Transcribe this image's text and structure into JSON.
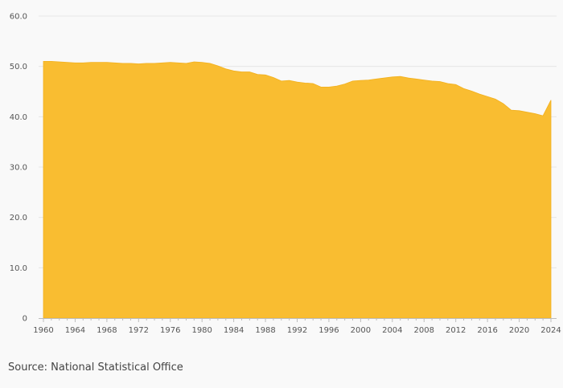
{
  "chart_data": {
    "type": "area",
    "title": "",
    "xlabel": "",
    "ylabel": "",
    "ylim": [
      0,
      60
    ],
    "xlim": [
      1960,
      2024
    ],
    "y_ticks": [
      "0",
      "10.0",
      "20.0",
      "30.0",
      "40.0",
      "50.0",
      "60.0"
    ],
    "x_ticks": [
      "1960",
      "1964",
      "1968",
      "1972",
      "1976",
      "1980",
      "1984",
      "1988",
      "1992",
      "1996",
      "2000",
      "2004",
      "2008",
      "2012",
      "2016",
      "2020",
      "2024"
    ],
    "grid": true,
    "color": "#f9bd31",
    "series": [
      {
        "x": [
          1960,
          1961,
          1962,
          1963,
          1964,
          1965,
          1966,
          1967,
          1968,
          1969,
          1970,
          1971,
          1972,
          1973,
          1974,
          1975,
          1976,
          1977,
          1978,
          1979,
          1980,
          1981,
          1982,
          1983,
          1984,
          1985,
          1986,
          1987,
          1988,
          1989,
          1990,
          1991,
          1992,
          1993,
          1994,
          1995,
          1996,
          1997,
          1998,
          1999,
          2000,
          2001,
          2002,
          2003,
          2004,
          2005,
          2006,
          2007,
          2008,
          2009,
          2010,
          2011,
          2012,
          2013,
          2014,
          2015,
          2016,
          2017,
          2018,
          2019,
          2020,
          2021,
          2022,
          2023,
          2024
        ],
        "values": [
          51.0,
          51.0,
          50.9,
          50.8,
          50.7,
          50.7,
          50.8,
          50.8,
          50.8,
          50.7,
          50.6,
          50.6,
          50.5,
          50.6,
          50.6,
          50.7,
          50.8,
          50.7,
          50.6,
          50.9,
          50.8,
          50.6,
          50.1,
          49.5,
          49.1,
          48.9,
          48.9,
          48.4,
          48.3,
          47.8,
          47.1,
          47.2,
          46.9,
          46.7,
          46.6,
          45.9,
          45.9,
          46.1,
          46.5,
          47.1,
          47.2,
          47.3,
          47.5,
          47.7,
          47.9,
          48.0,
          47.7,
          47.5,
          47.3,
          47.1,
          47.0,
          46.6,
          46.4,
          45.6,
          45.1,
          44.5,
          44.0,
          43.5,
          42.6,
          41.3,
          41.2,
          40.9,
          40.6,
          40.2,
          43.3
        ]
      }
    ]
  },
  "source": "Source: National Statistical Office"
}
